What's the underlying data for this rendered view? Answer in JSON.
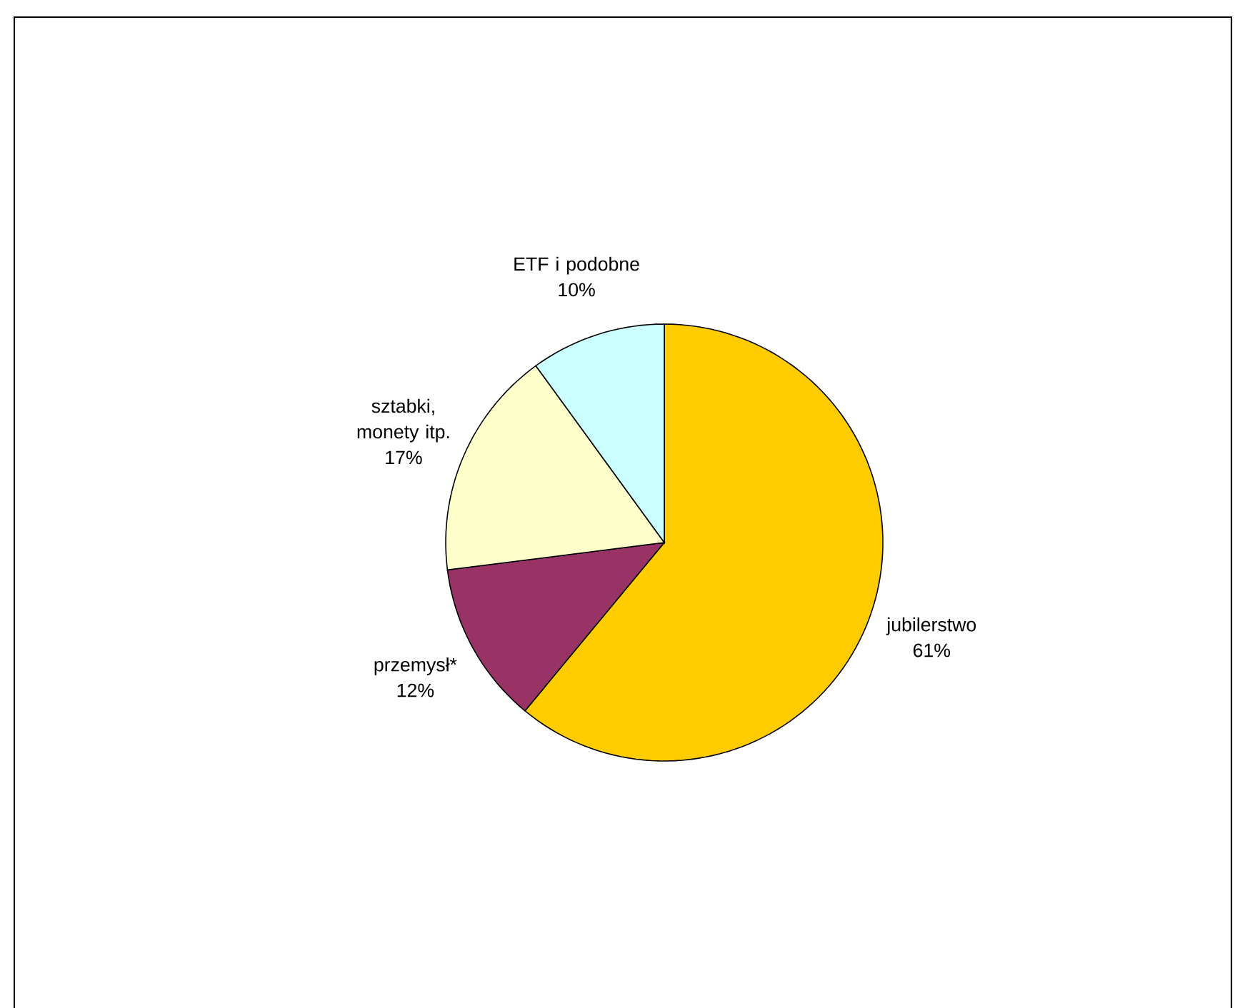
{
  "chart_data": {
    "type": "pie",
    "categories": [
      "jubilerstwo",
      "przemysł*",
      "sztabki, monety itp.",
      "ETF i podobne"
    ],
    "values": [
      61,
      12,
      17,
      10
    ],
    "value_labels": [
      "61%",
      "12%",
      "17%",
      "10%"
    ],
    "colors": [
      "#ffcc00",
      "#993366",
      "#ffffcc",
      "#ccffff"
    ]
  }
}
